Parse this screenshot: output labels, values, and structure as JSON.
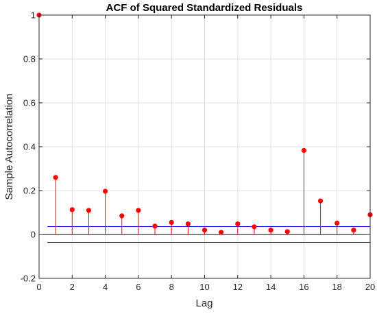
{
  "chart_data": {
    "type": "stem",
    "title": "ACF of Squared Standardized Residuals",
    "xlabel": "Lag",
    "ylabel": "Sample Autocorrelation",
    "xlim": [
      0,
      20
    ],
    "ylim": [
      -0.2,
      1
    ],
    "xticks": [
      0,
      2,
      4,
      6,
      8,
      10,
      12,
      14,
      16,
      18,
      20
    ],
    "yticks": [
      -0.2,
      0,
      0.2,
      0.4,
      0.6,
      0.8,
      1
    ],
    "xtick_labels": [
      "0",
      "2",
      "4",
      "6",
      "8",
      "10",
      "12",
      "14",
      "16",
      "18",
      "20"
    ],
    "ytick_labels": [
      "-0.2",
      "0",
      "0.2",
      "0.4",
      "0.6",
      "0.8",
      "1"
    ],
    "grid": true,
    "lags": [
      0,
      1,
      2,
      3,
      4,
      5,
      6,
      7,
      8,
      9,
      10,
      11,
      12,
      13,
      14,
      15,
      16,
      17,
      18,
      19,
      20
    ],
    "values": [
      1,
      0.26,
      0.113,
      0.11,
      0.197,
      0.085,
      0.11,
      0.038,
      0.055,
      0.048,
      0.02,
      0.01,
      0.048,
      0.035,
      0.02,
      0.013,
      0.383,
      0.153,
      0.052,
      0.02,
      0.09
    ],
    "confidence_bounds": [
      0.036,
      -0.036
    ],
    "colors": {
      "stem": "#ff0000",
      "marker": "#ff0000",
      "bounds": "#0000ff",
      "zero_line": "#000000",
      "grid": "#dfdfdf"
    }
  }
}
